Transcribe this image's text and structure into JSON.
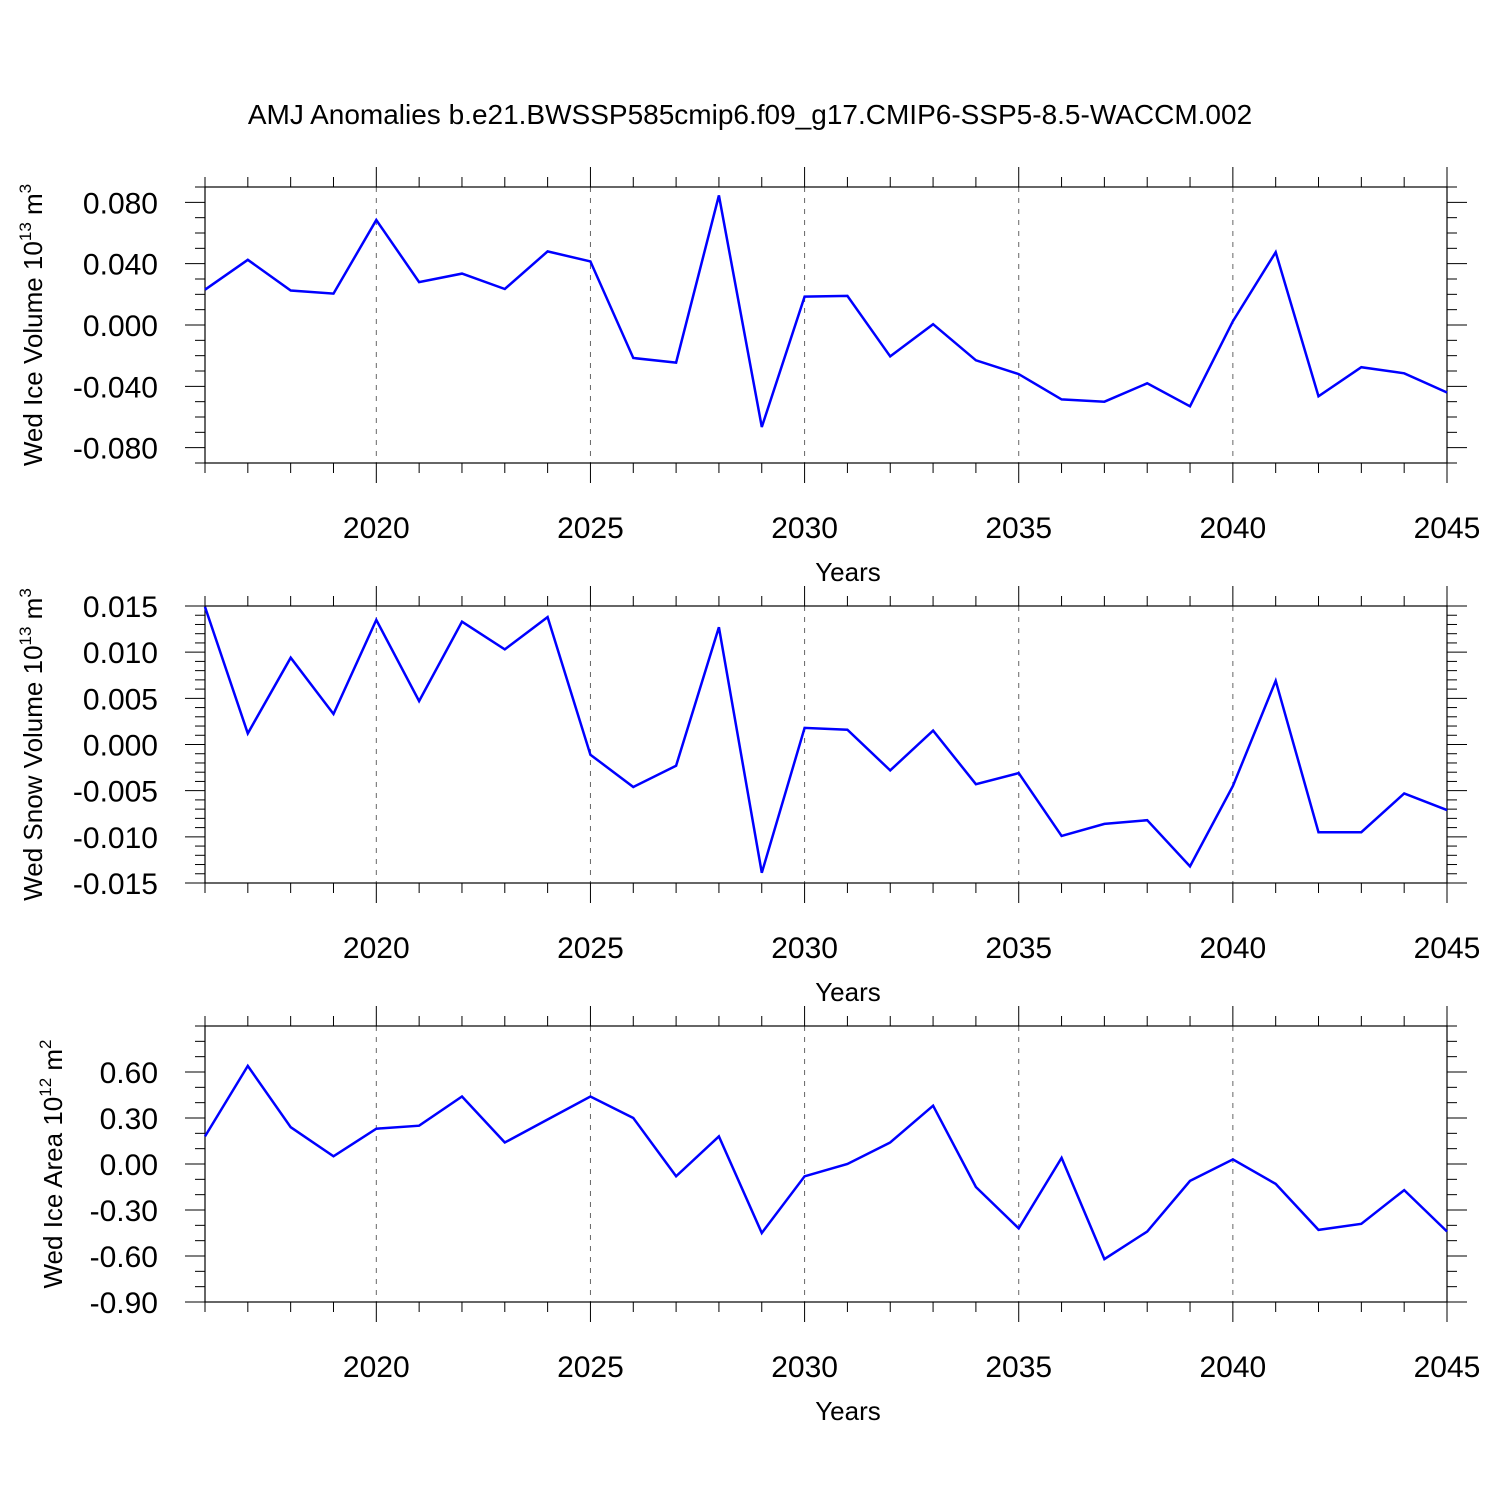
{
  "title": "AMJ Anomalies b.e21.BWSSP585cmip6.f09_g17.CMIP6-SSP5-8.5-WACCM.002",
  "colors": {
    "line": "#0000ff",
    "frame": "#000000",
    "grid": "#666666"
  },
  "chart_data": [
    {
      "type": "line",
      "xlabel": "Years",
      "ylabel": {
        "prefix": "Wed Ice Volume 10",
        "exponent": "13",
        "unit": " m",
        "unit_exponent": "3"
      },
      "xlim": [
        2016,
        2045
      ],
      "ylim": [
        -0.09,
        0.09
      ],
      "xticks": [
        2020,
        2025,
        2030,
        2035,
        2040,
        2045
      ],
      "xtick_labels": [
        "2020",
        "2025",
        "2030",
        "2035",
        "2040",
        "2045"
      ],
      "yticks": [
        0.08,
        0.04,
        0.0,
        -0.04,
        -0.08
      ],
      "ytick_labels": [
        "0.080",
        "0.040",
        "0.000",
        "-0.040",
        "-0.080"
      ],
      "yminor_step": 0.01,
      "grid": "dashed vertical at major x ticks",
      "series": [
        {
          "name": "Wed Ice Volume",
          "x": [
            2016,
            2017,
            2018,
            2019,
            2020,
            2021,
            2022,
            2023,
            2024,
            2025,
            2026,
            2027,
            2028,
            2029,
            2030,
            2031,
            2032,
            2033,
            2034,
            2035,
            2036,
            2037,
            2038,
            2039,
            2040,
            2041,
            2042,
            2043,
            2044,
            2045
          ],
          "values": [
            0.023,
            0.0425,
            0.0225,
            0.0205,
            0.0685,
            0.028,
            0.0335,
            0.0235,
            0.048,
            0.0415,
            -0.0215,
            -0.0245,
            0.0845,
            -0.0665,
            0.0185,
            0.019,
            -0.0205,
            0.0005,
            -0.023,
            -0.032,
            -0.0485,
            -0.05,
            -0.038,
            -0.053,
            0.0025,
            0.0475,
            -0.0465,
            -0.0275,
            -0.0315,
            -0.044
          ]
        }
      ]
    },
    {
      "type": "line",
      "xlabel": "Years",
      "ylabel": {
        "prefix": "Wed Snow Volume 10",
        "exponent": "13",
        "unit": " m",
        "unit_exponent": "3"
      },
      "xlim": [
        2016,
        2045
      ],
      "ylim": [
        -0.015,
        0.015
      ],
      "xticks": [
        2020,
        2025,
        2030,
        2035,
        2040,
        2045
      ],
      "xtick_labels": [
        "2020",
        "2025",
        "2030",
        "2035",
        "2040",
        "2045"
      ],
      "yticks": [
        0.015,
        0.01,
        0.005,
        0.0,
        -0.005,
        -0.01,
        -0.015
      ],
      "ytick_labels": [
        "0.015",
        "0.010",
        "0.005",
        "0.000",
        "-0.005",
        "-0.010",
        "-0.015"
      ],
      "yminor_step": 0.001,
      "grid": "dashed vertical at major x ticks",
      "series": [
        {
          "name": "Wed Snow Volume",
          "x": [
            2016,
            2017,
            2018,
            2019,
            2020,
            2021,
            2022,
            2023,
            2024,
            2025,
            2026,
            2027,
            2028,
            2029,
            2030,
            2031,
            2032,
            2033,
            2034,
            2035,
            2036,
            2037,
            2038,
            2039,
            2040,
            2041,
            2042,
            2043,
            2044,
            2045
          ],
          "values": [
            0.0149,
            0.0012,
            0.0094,
            0.0033,
            0.0135,
            0.0047,
            0.0133,
            0.0103,
            0.0138,
            -0.0011,
            -0.0046,
            -0.0023,
            0.0127,
            -0.0139,
            0.0018,
            0.0016,
            -0.0028,
            0.0015,
            -0.0043,
            -0.0031,
            -0.0099,
            -0.0086,
            -0.0082,
            -0.0132,
            -0.0045,
            0.0069,
            -0.0095,
            -0.0095,
            -0.0053,
            -0.0071
          ]
        }
      ]
    },
    {
      "type": "line",
      "xlabel": "Years",
      "ylabel": {
        "prefix": "Wed Ice Area 10",
        "exponent": "12",
        "unit": " m",
        "unit_exponent": "2"
      },
      "xlim": [
        2016,
        2045
      ],
      "ylim": [
        -0.9,
        0.9
      ],
      "xticks": [
        2020,
        2025,
        2030,
        2035,
        2040,
        2045
      ],
      "xtick_labels": [
        "2020",
        "2025",
        "2030",
        "2035",
        "2040",
        "2045"
      ],
      "yticks": [
        0.6,
        0.3,
        0.0,
        -0.3,
        -0.6,
        -0.9
      ],
      "ytick_labels": [
        "0.60",
        "0.30",
        "0.00",
        "-0.30",
        "-0.60",
        "-0.90"
      ],
      "yminor_step": 0.1,
      "grid": "dashed vertical at major x ticks",
      "series": [
        {
          "name": "Wed Ice Area",
          "x": [
            2016,
            2017,
            2018,
            2019,
            2020,
            2021,
            2022,
            2023,
            2024,
            2025,
            2026,
            2027,
            2028,
            2029,
            2030,
            2031,
            2032,
            2033,
            2034,
            2035,
            2036,
            2037,
            2038,
            2039,
            2040,
            2041,
            2042,
            2043,
            2044,
            2045
          ],
          "values": [
            0.18,
            0.64,
            0.24,
            0.05,
            0.23,
            0.25,
            0.44,
            0.14,
            0.29,
            0.44,
            0.3,
            -0.08,
            0.18,
            -0.45,
            -0.08,
            0.0,
            0.14,
            0.38,
            -0.15,
            -0.42,
            0.04,
            -0.62,
            -0.44,
            -0.11,
            0.03,
            -0.13,
            -0.43,
            -0.39,
            -0.17,
            -0.44
          ]
        }
      ]
    }
  ]
}
